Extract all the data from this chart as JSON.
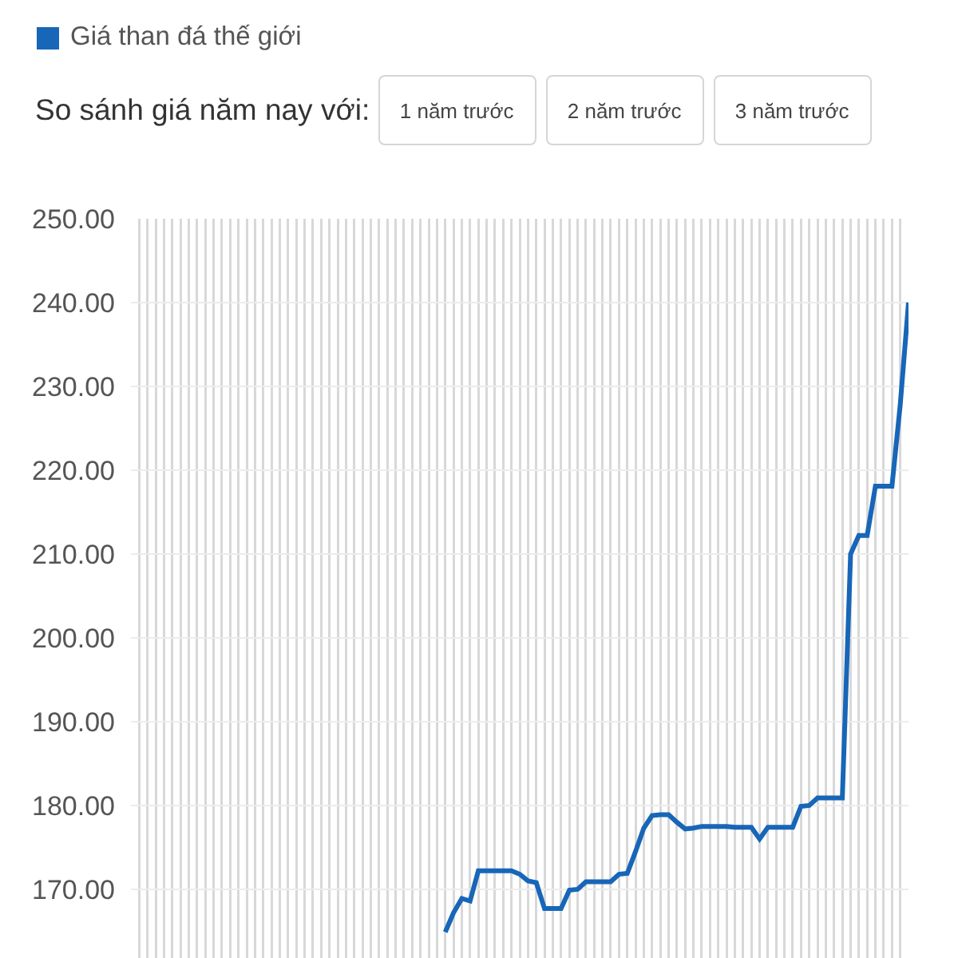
{
  "chart_data": {
    "type": "line",
    "categories": [
      null,
      null,
      null,
      null,
      null,
      null,
      null,
      null,
      null,
      null,
      null,
      null,
      null,
      null,
      null,
      null,
      null,
      null,
      null,
      null,
      null,
      null,
      null,
      null,
      null,
      null,
      null,
      null,
      null,
      null,
      null,
      null,
      null,
      null,
      null,
      null,
      null,
      null,
      null,
      null,
      null,
      null,
      null,
      null,
      null,
      null,
      null,
      null,
      null,
      null,
      null,
      null,
      null,
      null,
      null,
      null,
      null,
      null,
      null,
      null,
      null,
      null,
      null,
      null,
      null,
      null,
      null,
      null,
      null,
      null,
      null,
      null,
      null,
      null,
      null,
      null,
      null,
      null,
      null,
      null,
      null,
      null,
      null,
      null,
      null,
      null,
      null,
      null,
      null,
      null,
      null,
      null,
      null,
      null,
      null
    ],
    "series": [
      {
        "name": "Giá than đá thế giới",
        "color": "#1766b8",
        "values": [
          null,
          null,
          null,
          null,
          null,
          null,
          null,
          null,
          null,
          null,
          null,
          null,
          null,
          null,
          null,
          null,
          null,
          null,
          null,
          null,
          null,
          null,
          null,
          null,
          null,
          null,
          null,
          null,
          null,
          null,
          null,
          null,
          null,
          null,
          null,
          null,
          null,
          null,
          164.9,
          167.2,
          168.9,
          168.6,
          172.2,
          172.2,
          172.2,
          172.2,
          172.2,
          171.8,
          171.0,
          170.8,
          167.7,
          167.7,
          167.7,
          169.9,
          170.0,
          170.9,
          170.9,
          170.9,
          170.9,
          171.8,
          171.9,
          174.5,
          177.3,
          178.8,
          178.9,
          178.9,
          178.0,
          177.2,
          177.3,
          177.5,
          177.5,
          177.5,
          177.5,
          177.4,
          177.4,
          177.4,
          176.0,
          177.4,
          177.4,
          177.4,
          177.4,
          179.9,
          180.0,
          180.9,
          180.9,
          180.9,
          180.9,
          210.0,
          212.2,
          212.2,
          218.1,
          218.1,
          218.1,
          227.8,
          240.0
        ]
      }
    ],
    "ylim": [
      161.8,
      250
    ],
    "yticks": [
      {
        "value": 170,
        "label": "170.00"
      },
      {
        "value": 180,
        "label": "180.00"
      },
      {
        "value": 190,
        "label": "190.00"
      },
      {
        "value": 200,
        "label": "200.00"
      },
      {
        "value": 210,
        "label": "210.00"
      },
      {
        "value": 220,
        "label": "220.00"
      },
      {
        "value": 230,
        "label": "230.00"
      },
      {
        "value": 240,
        "label": "240.00"
      },
      {
        "value": 250,
        "label": "250.00"
      }
    ],
    "grid": true,
    "legend": "top left",
    "tick_labels": "y",
    "annotations": [
      "So sánh giá năm nay với:",
      "1 năm trước",
      "2 năm trước",
      "3 năm trước"
    ]
  }
}
